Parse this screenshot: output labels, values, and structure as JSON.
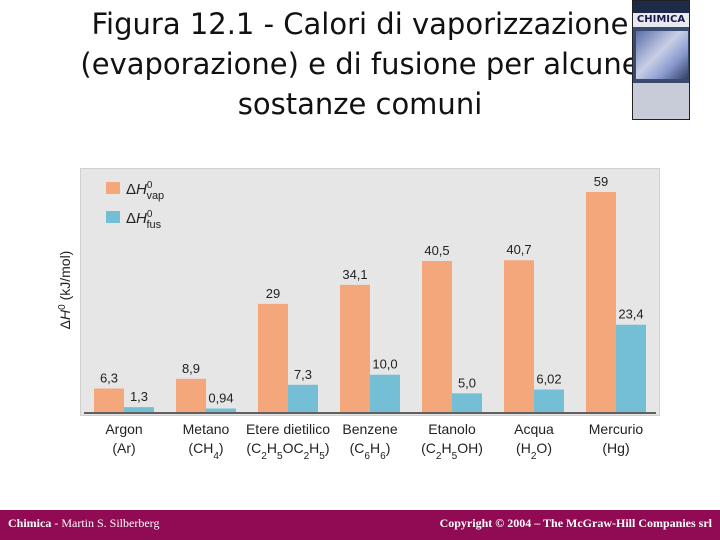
{
  "slide": {
    "title_line1": "Figura 12.1 - Calori di vaporizzazione",
    "title_line2": "(evaporazione) e di fusione per alcune",
    "title_line3": "sostanze comuni"
  },
  "book_cover": {
    "title": "CHIMICA"
  },
  "footer": {
    "left_bold": "Chimica",
    "left_rest": " - Martin S. Silberberg",
    "right": "Copyright © 2004 – The McGraw-Hill Companies srl"
  },
  "colors": {
    "vap": "#f5a77c",
    "fus": "#74bfd6",
    "footer": "#900a54"
  },
  "chart_data": {
    "type": "bar",
    "categories": [
      "Argon (Ar)",
      "Metano (CH4)",
      "Etere dietilico (C2H5OC2H5)",
      "Benzene (C6H6)",
      "Etanolo (C2H5OH)",
      "Acqua (H2O)",
      "Mercurio (Hg)"
    ],
    "series": [
      {
        "name": "ΔH0vap",
        "values": [
          6.3,
          8.9,
          29,
          34.1,
          40.5,
          40.7,
          59
        ],
        "labels": [
          "6,3",
          "8,9",
          "29",
          "34,1",
          "40,5",
          "40,7",
          "59"
        ]
      },
      {
        "name": "ΔH0fus",
        "values": [
          1.3,
          0.94,
          7.3,
          10.0,
          5.0,
          6.02,
          23.4
        ],
        "labels": [
          "1,3",
          "0,94",
          "7,3",
          "10,0",
          "5,0",
          "6,02",
          "23,4"
        ]
      }
    ],
    "ylabel": "ΔH0 (kJ/mol)",
    "ylim": [
      0,
      63
    ],
    "legend": "top-left",
    "grid": false
  }
}
